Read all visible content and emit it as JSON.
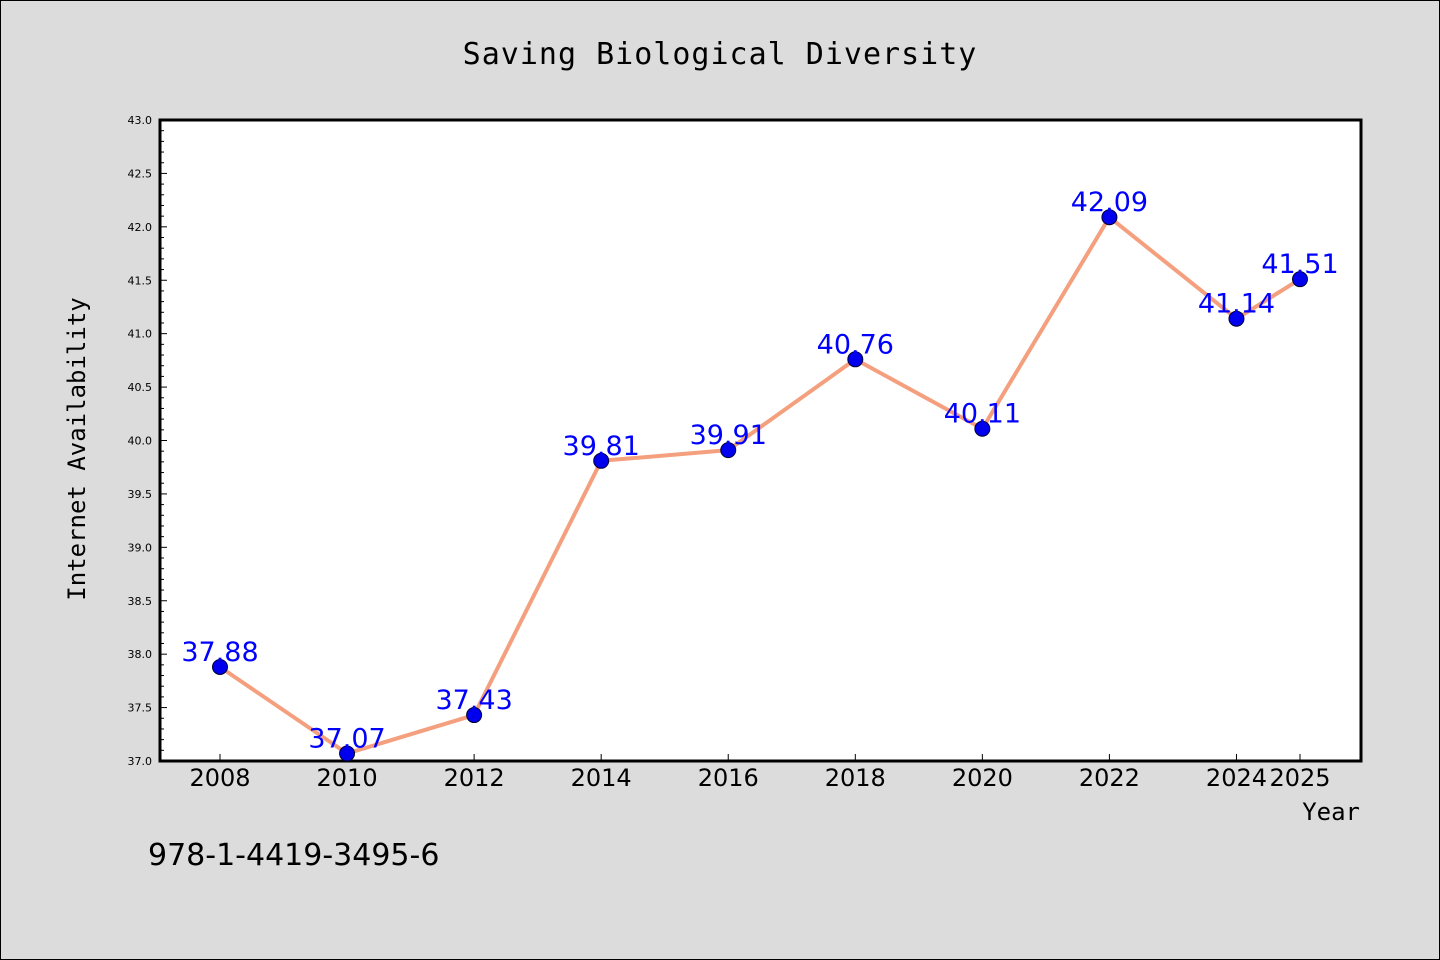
{
  "chart_data": {
    "type": "line",
    "title": "Saving Biological Diversity",
    "xlabel": "Year",
    "ylabel": "Internet Availability",
    "x": [
      "2008",
      "2010",
      "2012",
      "2014",
      "2016",
      "2018",
      "2020",
      "2022",
      "2024",
      "2025"
    ],
    "series": [
      {
        "values": [
          37.88,
          37.07,
          37.43,
          39.81,
          39.91,
          40.76,
          40.11,
          42.09,
          41.14,
          41.51
        ],
        "labels": [
          "37.88",
          "37.07",
          "37.43",
          "39.81",
          "39.91",
          "40.76",
          "40.11",
          "42.09",
          "41.14",
          "41.51"
        ],
        "line_color": "#f4a07e",
        "marker_color": "#0000ee"
      }
    ],
    "ylim": [
      37.0,
      43.0
    ],
    "yticks": [
      "37.0",
      "37.5",
      "38.0",
      "38.5",
      "39.0",
      "39.5",
      "40.0",
      "40.5",
      "41.0",
      "41.5",
      "42.0",
      "42.5",
      "43.0"
    ],
    "grid": false,
    "label_color": "#0000ff"
  },
  "footnote": "978-1-4419-3495-6"
}
